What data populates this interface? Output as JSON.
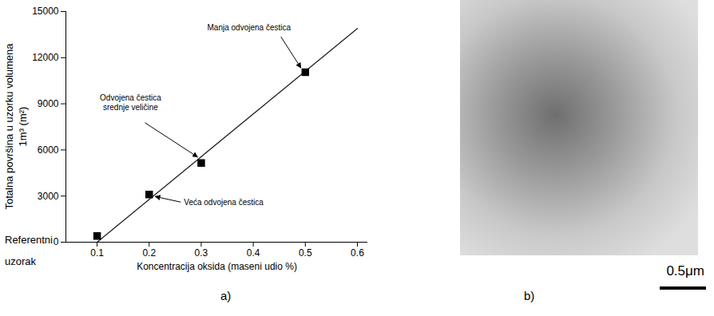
{
  "chart_data": {
    "type": "scatter",
    "panel_label": "a)",
    "xlabel": "Koncentracija oksida (maseni udio %)",
    "ylabel": [
      "Totalna površina u uzorku volumena",
      "1m³ (m²)"
    ],
    "xlim": [
      0.04,
      0.62
    ],
    "xticks": [
      0.1,
      0.2,
      0.3,
      0.4,
      0.5,
      0.6
    ],
    "ylim": [
      0,
      15000
    ],
    "yticks": [
      0,
      3000,
      6000,
      9000,
      12000,
      15000
    ],
    "grid": false,
    "series": [
      {
        "type": "scatter",
        "marker": "square",
        "color": "#000000",
        "x": [
          0.1,
          0.2,
          0.3,
          0.5
        ],
        "values": [
          400,
          3100,
          5150,
          11050
        ],
        "point_labels": [
          "Referentni\nuzorak",
          "Veća odvojena čestica",
          "Odvojena čestica\nsrednje veličine",
          "Manja odvojena čestica"
        ]
      },
      {
        "type": "line",
        "line_style": "solid",
        "color": "#222222",
        "x": [
          0.1,
          0.6
        ],
        "values": [
          0,
          13900
        ]
      }
    ]
  },
  "image_panel": {
    "panel_label": "b)",
    "scale_bar": "0.5μm"
  }
}
